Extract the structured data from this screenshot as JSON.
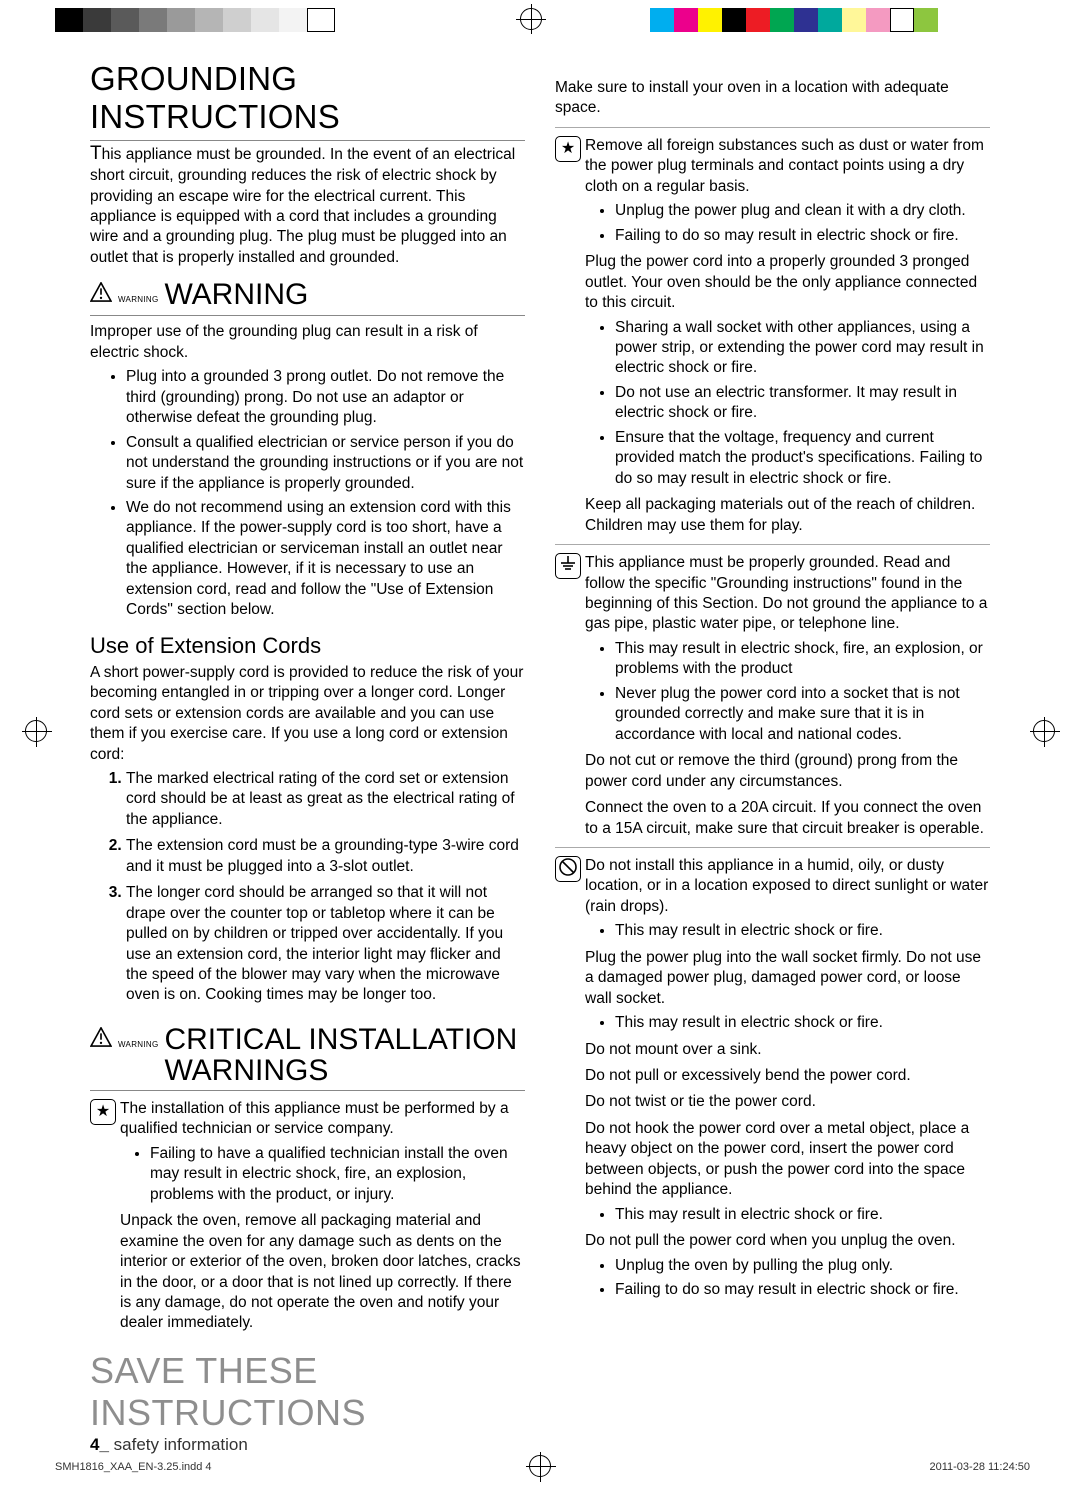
{
  "printer": {
    "left_swatches": [
      "#000000",
      "#3a3a3a",
      "#5a5a5a",
      "#7a7a7a",
      "#9a9a9a",
      "#b5b5b5",
      "#cfcfcf",
      "#e5e5e5",
      "#f3f3f3",
      "#ffffff"
    ],
    "right_swatches": [
      "#00aeef",
      "#ec008c",
      "#fff200",
      "#000000",
      "#ed1c24",
      "#00a651",
      "#2e3192",
      "#00a99d",
      "#fff799",
      "#f49ac1",
      "#ffffff",
      "#8dc63f"
    ],
    "file": "SMH1816_XAA_EN-3.25.indd   4",
    "timestamp": "2011-03-28   11:24:50"
  },
  "left": {
    "h1": "GROUNDING INSTRUCTIONS",
    "p1": "This appliance must be grounded. In the event of an electrical short circuit, grounding reduces the risk of electric shock by providing an escape wire for the electrical current. This appliance is equipped with a cord that includes a grounding wire and a grounding plug. The plug must be plugged into an outlet that is properly installed and grounded.",
    "warn_label_small": "WARNING",
    "warn_label": "WARNING",
    "warn_p": "Improper use of the grounding plug can result in a risk of electric shock.",
    "warn_bullets": [
      "Plug into a grounded 3 prong outlet. Do not remove the third (grounding) prong. Do not use an adaptor or otherwise defeat the grounding plug.",
      "Consult a qualified electrician or service person if you do not understand the grounding instructions or if you are not sure if the appliance is properly grounded.",
      "We do not recommend using an extension cord with this appliance. If the power-supply cord is too short, have a qualified electrician or serviceman install an outlet near the appliance.  However, if it is necessary to use an extension cord, read and follow the \"Use of Extension Cords\" section below."
    ],
    "ext_h": "Use of Extension Cords",
    "ext_p": "A short power-supply cord is provided to reduce the risk of your becoming entangled in or tripping over a longer cord. Longer cord sets or extension cords are available and you can use them if you exercise care. If you use a long cord or extension cord:",
    "ext_ol": [
      "The marked electrical rating of the cord set or extension cord should be at least as great as the electrical rating of the appliance.",
      "The extension cord must be a grounding-type 3-wire cord and it must be plugged into a 3-slot outlet.",
      "The longer cord should be arranged so that it will not drape over the counter top or tabletop where it can be pulled on by children or tripped over accidentally. If you use an extension cord, the interior light may flicker and the speed of the blower may vary when the microwave oven is on. Cooking times may be longer too."
    ],
    "crit_small": "WARNING",
    "crit_h": "CRITICAL INSTALLATION WARNINGS",
    "crit_p1": "The installation of this appliance must be performed by a qualified technician or service company.",
    "crit_b1": "Failing to have a qualified technician install the oven may result in electric shock, fire, an explosion, problems with the product, or injury.",
    "crit_p2": "Unpack the oven, remove all packaging material and examine the oven for any damage such as dents on the interior or exterior of the oven, broken door latches, cracks in the door, or a door that is not lined up correctly. If there is any damage, do not operate the oven and notify your dealer immediately.",
    "save": "SAVE THESE INSTRUCTIONS",
    "footer_num": "4_",
    "footer_txt": " safety information"
  },
  "right": {
    "p0": "Make sure to install your oven in a location with adequate space.",
    "star_p": "Remove all foreign substances such as dust or water from the power plug terminals and contact points using a dry cloth on a regular basis.",
    "star_b": [
      "Unplug the power plug and clean it with a dry cloth.",
      "Failing to do so may result in electric shock or fire."
    ],
    "plug_p": "Plug the power cord into a properly grounded 3 pronged outlet. Your oven should be the only appliance connected to this circuit.",
    "plug_b": [
      "Sharing a wall socket with other appliances, using a power strip, or extending the power cord may result in electric shock or fire.",
      "Do not use an electric transformer. It may result in electric shock or fire.",
      "Ensure that the voltage, frequency and current provided  match  the product's specifications. Failing to do so may result in electric shock or fire."
    ],
    "pack_p": "Keep all packaging materials out of the reach of children. Children may use them for play.",
    "ground_p": "This appliance must be properly grounded. Read and follow the specific \"Grounding instructions\" found in the beginning of this Section. Do not ground the appliance to a gas pipe, plastic water pipe, or telephone line.",
    "ground_b": [
      "This may result in electric shock, fire, an explosion, or problems with the product",
      "Never plug the power cord into a socket that is not grounded correctly and make sure that it is in accordance with local and national codes."
    ],
    "cut_p": "Do not cut or remove the third (ground) prong from the power cord under any circumstances.",
    "conn_p": "Connect the oven to a 20A circuit. If you connect the oven to a 15A circuit, make sure that circuit breaker is operable.",
    "humid_p": "Do not install this appliance in a humid, oily, or dusty location, or in a location exposed to direct sunlight or water (rain drops).",
    "humid_b": "This may result in electric shock or fire.",
    "firm_p": "Plug the power plug into the wall socket firmly. Do not use a damaged power plug, damaged power cord, or loose wall socket.",
    "firm_b": "This may result in electric shock or fire.",
    "sink_p": "Do not mount over a sink.",
    "bend_p": "Do not pull or excessively bend the power cord.",
    "twist_p": "Do not twist or tie the power cord.",
    "hook_p": "Do not hook the power cord over a metal object, place a heavy object on the power cord, insert the power cord between objects, or push the power cord into the space behind the appliance.",
    "hook_b": "This may result in electric shock or fire.",
    "pull_p": "Do not pull the power cord when you unplug the oven.",
    "pull_b": [
      "Unplug the oven by pulling the plug only.",
      "Failing to do so may result in electric shock or fire."
    ]
  }
}
